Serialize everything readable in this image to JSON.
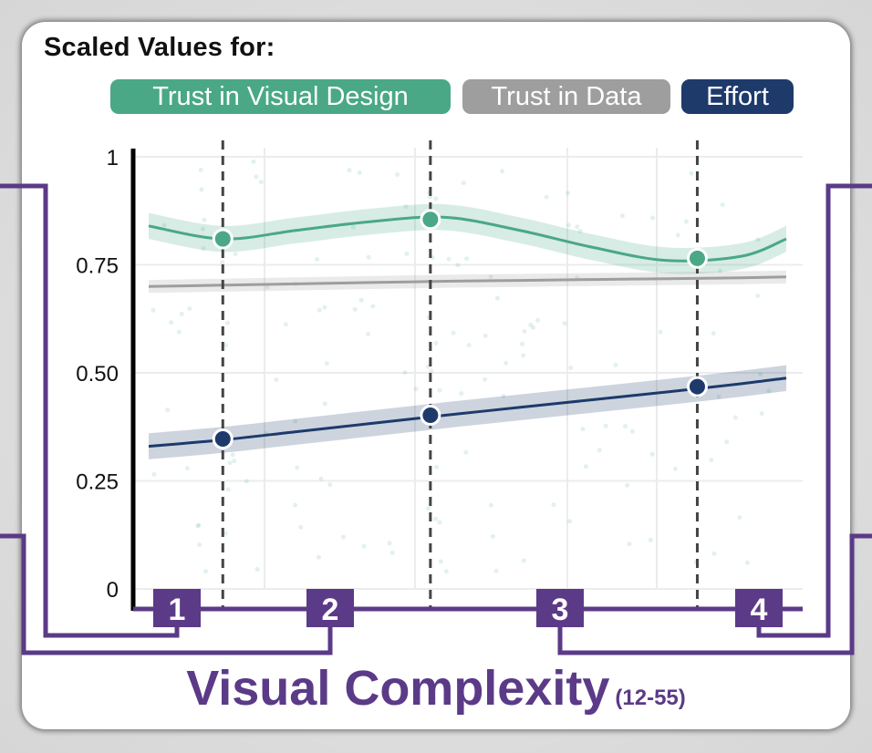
{
  "header": {
    "title": "Scaled Values for:"
  },
  "legend": [
    {
      "label": "Trust in Visual Design",
      "color": "#4aa886"
    },
    {
      "label": "Trust in Data",
      "color": "#9e9e9e"
    },
    {
      "label": "Effort",
      "color": "#1d3a6b"
    }
  ],
  "x_axis": {
    "title": "Visual Complexity",
    "range_label": "(12-55)"
  },
  "bins": [
    {
      "label": "1",
      "color": "#5b3a87"
    },
    {
      "label": "2",
      "color": "#5b3a87"
    },
    {
      "label": "3",
      "color": "#5b3a87"
    },
    {
      "label": "4",
      "color": "#5b3a87"
    }
  ],
  "chart_data": {
    "type": "line",
    "x": [
      12,
      17,
      22,
      27,
      32,
      37,
      42,
      47,
      52,
      55
    ],
    "xlim": [
      12,
      55
    ],
    "ylim": [
      0,
      1
    ],
    "yticks": [
      0,
      0.25,
      0.5,
      0.75,
      1
    ],
    "ytick_labels": [
      "0",
      "0.25",
      "0.50",
      "0.75",
      "1"
    ],
    "grid": true,
    "reference_x": [
      17,
      31,
      49
    ],
    "series": [
      {
        "name": "Trust in Visual Design",
        "color": "#4aa886",
        "values": [
          0.84,
          0.81,
          0.83,
          0.85,
          0.86,
          0.83,
          0.79,
          0.76,
          0.77,
          0.81
        ],
        "band": 0.03,
        "markers": [
          {
            "x": 17,
            "y": 0.81
          },
          {
            "x": 31,
            "y": 0.855
          },
          {
            "x": 49,
            "y": 0.765
          }
        ]
      },
      {
        "name": "Trust in Data",
        "color": "#9e9e9e",
        "values": [
          0.7,
          0.703,
          0.706,
          0.709,
          0.712,
          0.714,
          0.716,
          0.718,
          0.72,
          0.722
        ],
        "band": 0.015,
        "markers": []
      },
      {
        "name": "Effort",
        "color": "#1d3a6b",
        "values": [
          0.33,
          0.345,
          0.364,
          0.383,
          0.402,
          0.42,
          0.438,
          0.456,
          0.475,
          0.488
        ],
        "band": 0.03,
        "markers": [
          {
            "x": 17,
            "y": 0.347
          },
          {
            "x": 31,
            "y": 0.402
          },
          {
            "x": 49,
            "y": 0.468
          }
        ]
      }
    ]
  }
}
